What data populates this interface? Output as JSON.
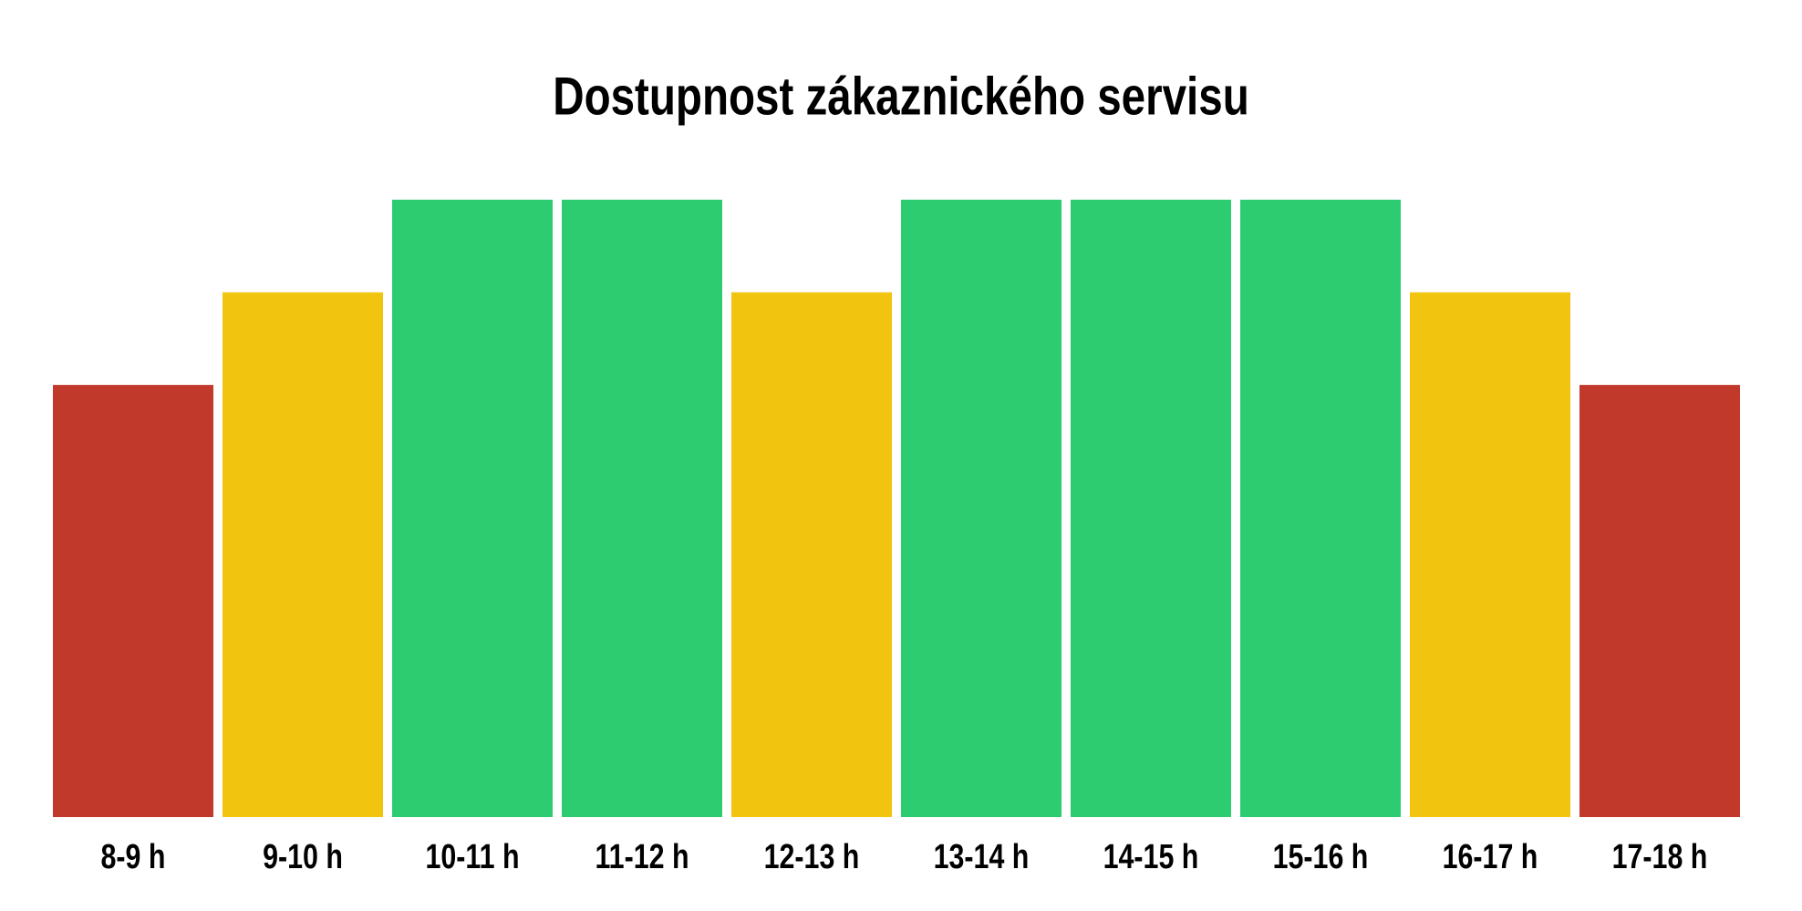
{
  "chart_data": {
    "type": "bar",
    "title": "Dostupnost zákaznického servisu",
    "categories": [
      "8-9 h",
      "9-10 h",
      "10-11 h",
      "11-12 h",
      "12-13 h",
      "13-14 h",
      "14-15 h",
      "15-16 h",
      "16-17 h",
      "17-18 h"
    ],
    "values": [
      70,
      85,
      100,
      100,
      85,
      100,
      100,
      100,
      85,
      70
    ],
    "colors": [
      "#c0392b",
      "#f1c40f",
      "#2ecc71",
      "#2ecc71",
      "#f1c40f",
      "#2ecc71",
      "#2ecc71",
      "#2ecc71",
      "#f1c40f",
      "#c0392b"
    ],
    "ylim": [
      0,
      100
    ]
  }
}
